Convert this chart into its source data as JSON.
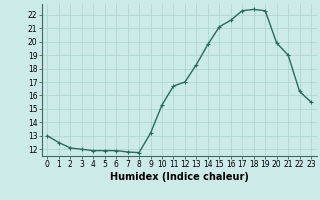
{
  "x": [
    0,
    1,
    2,
    3,
    4,
    5,
    6,
    7,
    8,
    9,
    10,
    11,
    12,
    13,
    14,
    15,
    16,
    17,
    18,
    19,
    20,
    21,
    22,
    23
  ],
  "y": [
    13.0,
    12.5,
    12.1,
    12.0,
    11.9,
    11.9,
    11.9,
    11.8,
    11.75,
    13.2,
    15.3,
    16.7,
    17.0,
    18.3,
    19.8,
    21.1,
    21.6,
    22.3,
    22.4,
    22.3,
    19.9,
    19.0,
    16.3,
    15.5
  ],
  "line_color": "#2a6b5e",
  "marker": "+",
  "marker_size": 3,
  "bg_color": "#cceae7",
  "grid_color": "#aad4d0",
  "xlabel": "Humidex (Indice chaleur)",
  "xlim": [
    -0.5,
    23.5
  ],
  "ylim": [
    11.5,
    22.8
  ],
  "yticks": [
    12,
    13,
    14,
    15,
    16,
    17,
    18,
    19,
    20,
    21,
    22
  ],
  "xticks": [
    0,
    1,
    2,
    3,
    4,
    5,
    6,
    7,
    8,
    9,
    10,
    11,
    12,
    13,
    14,
    15,
    16,
    17,
    18,
    19,
    20,
    21,
    22,
    23
  ],
  "tick_label_fontsize": 5.5,
  "xlabel_fontsize": 7,
  "linewidth": 1.0,
  "marker_edge_width": 0.8
}
